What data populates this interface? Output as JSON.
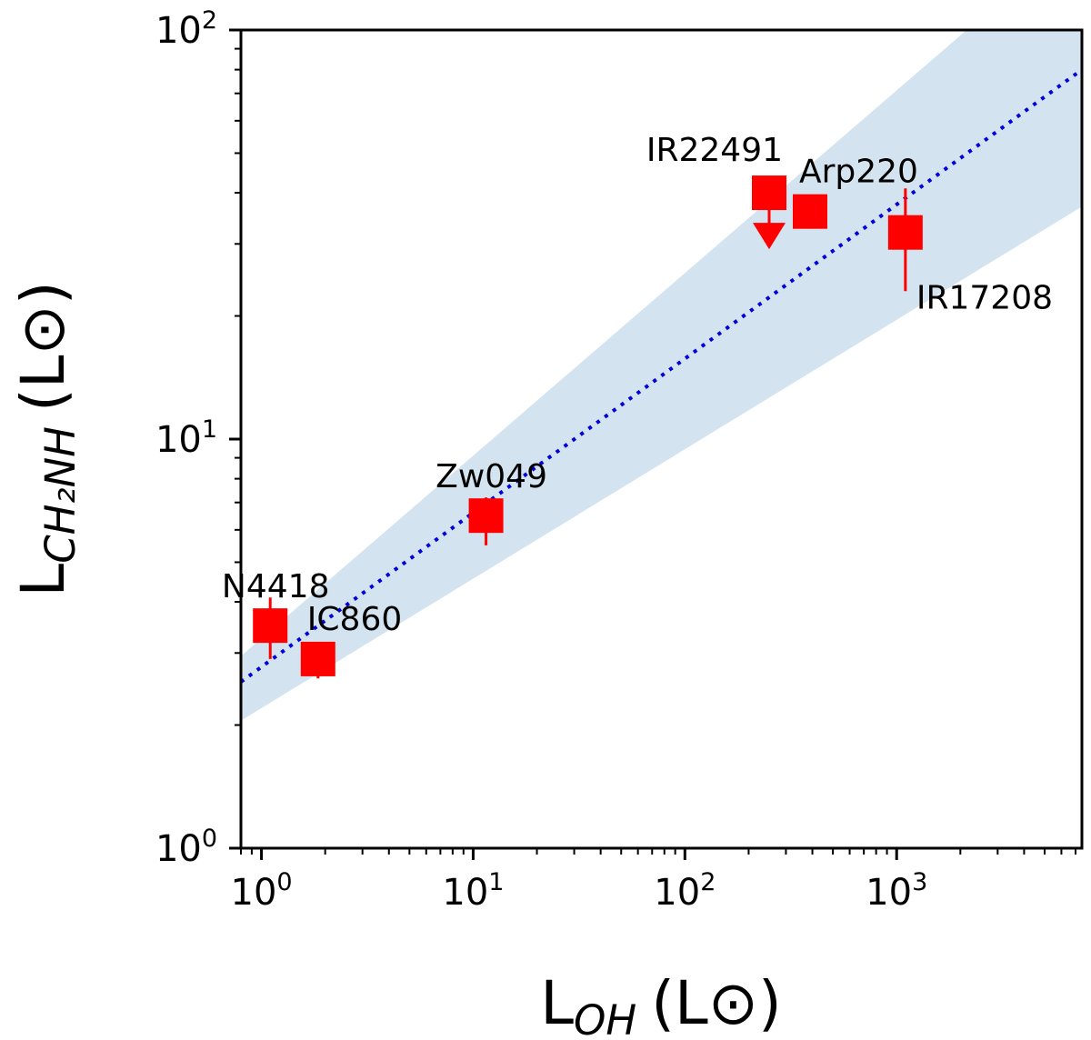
{
  "chart_data": {
    "type": "scatter",
    "title": "",
    "xscale": "log",
    "yscale": "log",
    "xlim": [
      0.8,
      7500
    ],
    "ylim": [
      1,
      100
    ],
    "xlabel": {
      "main": "L",
      "sub": "OH",
      "unit": "(L⊙)"
    },
    "ylabel": {
      "main": "L",
      "sub": "CH₂NH",
      "unit": "(L⊙)"
    },
    "x_ticks": [
      {
        "value": 1,
        "base": "10",
        "exp": "0"
      },
      {
        "value": 10,
        "base": "10",
        "exp": "1"
      },
      {
        "value": 100,
        "base": "10",
        "exp": "2"
      },
      {
        "value": 1000,
        "base": "10",
        "exp": "3"
      }
    ],
    "y_ticks": [
      {
        "value": 1,
        "base": "10",
        "exp": "0"
      },
      {
        "value": 10,
        "base": "10",
        "exp": "1"
      },
      {
        "value": 100,
        "base": "10",
        "exp": "2"
      }
    ],
    "points": [
      {
        "label": "N4418",
        "x": 1.1,
        "y": 3.5,
        "yerr_low": 2.9,
        "yerr_high": 4.1,
        "upper_limit": false,
        "label_pos": "above"
      },
      {
        "label": "IC860",
        "x": 1.85,
        "y": 2.9,
        "yerr_low": 2.6,
        "yerr_high": 3.1,
        "upper_limit": false,
        "label_pos": "above-right"
      },
      {
        "label": "Zw049",
        "x": 11.5,
        "y": 6.5,
        "yerr_low": 5.5,
        "yerr_high": 7.2,
        "upper_limit": false,
        "label_pos": "above"
      },
      {
        "label": "IR22491",
        "x": 250,
        "y": 40,
        "yerr_low": 0,
        "yerr_high": 0,
        "upper_limit": true,
        "label_pos": "above-left"
      },
      {
        "label": "Arp220",
        "x": 390,
        "y": 36,
        "yerr_low": 0,
        "yerr_high": 0,
        "upper_limit": false,
        "label_pos": "above-right"
      },
      {
        "label": "IR17208",
        "x": 1100,
        "y": 32,
        "yerr_low": 23,
        "yerr_high": 41,
        "upper_limit": false,
        "label_pos": "below-right"
      }
    ],
    "fit_line": {
      "style": "dotted",
      "color": "#0000dd",
      "x": [
        0.8,
        7500
      ],
      "y": [
        2.55,
        80
      ]
    },
    "confidence_band": {
      "color": "#d3e4f0",
      "x": [
        0.8,
        7500
      ],
      "y_low": [
        2.05,
        37
      ],
      "y_high": [
        2.95,
        175
      ]
    },
    "marker_color": "#ff0000",
    "grid": false,
    "legend": "none"
  }
}
